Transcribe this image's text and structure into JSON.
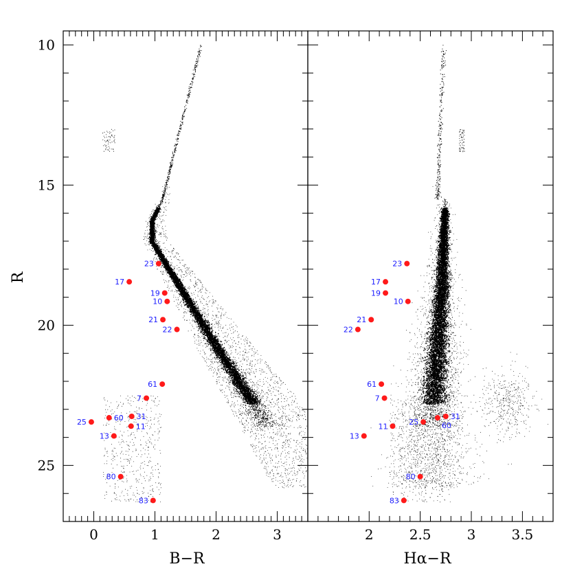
{
  "colors": {
    "highlight": "#ff1a1a",
    "label": "#1a1aff",
    "cloud": "#000000"
  },
  "chart_data": [
    {
      "type": "scatter",
      "panel": "left",
      "xlabel": "B−R",
      "ylabel": "R",
      "xlim": [
        -0.5,
        3.5
      ],
      "ylim": [
        27.0,
        9.5
      ],
      "y_inverted": true,
      "xticks": [
        {
          "value": 0,
          "label": "0"
        },
        {
          "value": 1,
          "label": "1"
        },
        {
          "value": 2,
          "label": "2"
        },
        {
          "value": 3,
          "label": "3"
        }
      ],
      "yticks": [
        {
          "value": 10,
          "label": "10"
        },
        {
          "value": 15,
          "label": "15"
        },
        {
          "value": 20,
          "label": "20"
        },
        {
          "value": 25,
          "label": "25"
        }
      ],
      "xminor_step": 0.1,
      "yminor_step": 1,
      "highlighted": [
        {
          "id": "23",
          "x": 1.06,
          "y": 17.8,
          "side": "left"
        },
        {
          "id": "17",
          "x": 0.58,
          "y": 18.45,
          "side": "left"
        },
        {
          "id": "19",
          "x": 1.16,
          "y": 18.85,
          "side": "left"
        },
        {
          "id": "10",
          "x": 1.2,
          "y": 19.15,
          "side": "left"
        },
        {
          "id": "21",
          "x": 1.13,
          "y": 19.8,
          "side": "left"
        },
        {
          "id": "22",
          "x": 1.36,
          "y": 20.15,
          "side": "left"
        },
        {
          "id": "61",
          "x": 1.12,
          "y": 22.1,
          "side": "left"
        },
        {
          "id": "7",
          "x": 0.86,
          "y": 22.6,
          "side": "left"
        },
        {
          "id": "25",
          "x": -0.04,
          "y": 23.45,
          "side": "left"
        },
        {
          "id": "60",
          "x": 0.25,
          "y": 23.3,
          "side": "right"
        },
        {
          "id": "31",
          "x": 0.62,
          "y": 23.25,
          "side": "right"
        },
        {
          "id": "11",
          "x": 0.61,
          "y": 23.6,
          "side": "right"
        },
        {
          "id": "13",
          "x": 0.33,
          "y": 23.95,
          "side": "left"
        },
        {
          "id": "80",
          "x": 0.44,
          "y": 25.4,
          "side": "left"
        },
        {
          "id": "83",
          "x": 0.97,
          "y": 26.25,
          "side": "left"
        }
      ]
    },
    {
      "type": "scatter",
      "panel": "right",
      "xlabel": "Hα−R",
      "ylabel": "",
      "xlim": [
        1.4,
        3.8
      ],
      "ylim": [
        27.0,
        9.5
      ],
      "y_inverted": true,
      "xticks": [
        {
          "value": 2.0,
          "label": "2"
        },
        {
          "value": 2.5,
          "label": "2.5"
        },
        {
          "value": 3.0,
          "label": "3"
        },
        {
          "value": 3.5,
          "label": "3.5"
        }
      ],
      "yticks": [
        {
          "value": 10,
          "label": ""
        },
        {
          "value": 15,
          "label": ""
        },
        {
          "value": 20,
          "label": ""
        },
        {
          "value": 25,
          "label": ""
        }
      ],
      "xminor_step": 0.1,
      "yminor_step": 1,
      "highlighted": [
        {
          "id": "23",
          "x": 2.37,
          "y": 17.8,
          "side": "left"
        },
        {
          "id": "17",
          "x": 2.16,
          "y": 18.45,
          "side": "left"
        },
        {
          "id": "19",
          "x": 2.16,
          "y": 18.85,
          "side": "left"
        },
        {
          "id": "10",
          "x": 2.38,
          "y": 19.15,
          "side": "left"
        },
        {
          "id": "21",
          "x": 2.02,
          "y": 19.8,
          "side": "left"
        },
        {
          "id": "22",
          "x": 1.89,
          "y": 20.15,
          "side": "left"
        },
        {
          "id": "61",
          "x": 2.12,
          "y": 22.1,
          "side": "left"
        },
        {
          "id": "7",
          "x": 2.15,
          "y": 22.6,
          "side": "left"
        },
        {
          "id": "11",
          "x": 2.23,
          "y": 23.6,
          "side": "left"
        },
        {
          "id": "25",
          "x": 2.53,
          "y": 23.45,
          "side": "left"
        },
        {
          "id": "60",
          "x": 2.67,
          "y": 23.3,
          "side": "below"
        },
        {
          "id": "31",
          "x": 2.75,
          "y": 23.25,
          "side": "right"
        },
        {
          "id": "13",
          "x": 1.95,
          "y": 23.95,
          "side": "left"
        },
        {
          "id": "80",
          "x": 2.5,
          "y": 25.4,
          "side": "left"
        },
        {
          "id": "83",
          "x": 2.34,
          "y": 26.25,
          "side": "left"
        }
      ]
    }
  ]
}
